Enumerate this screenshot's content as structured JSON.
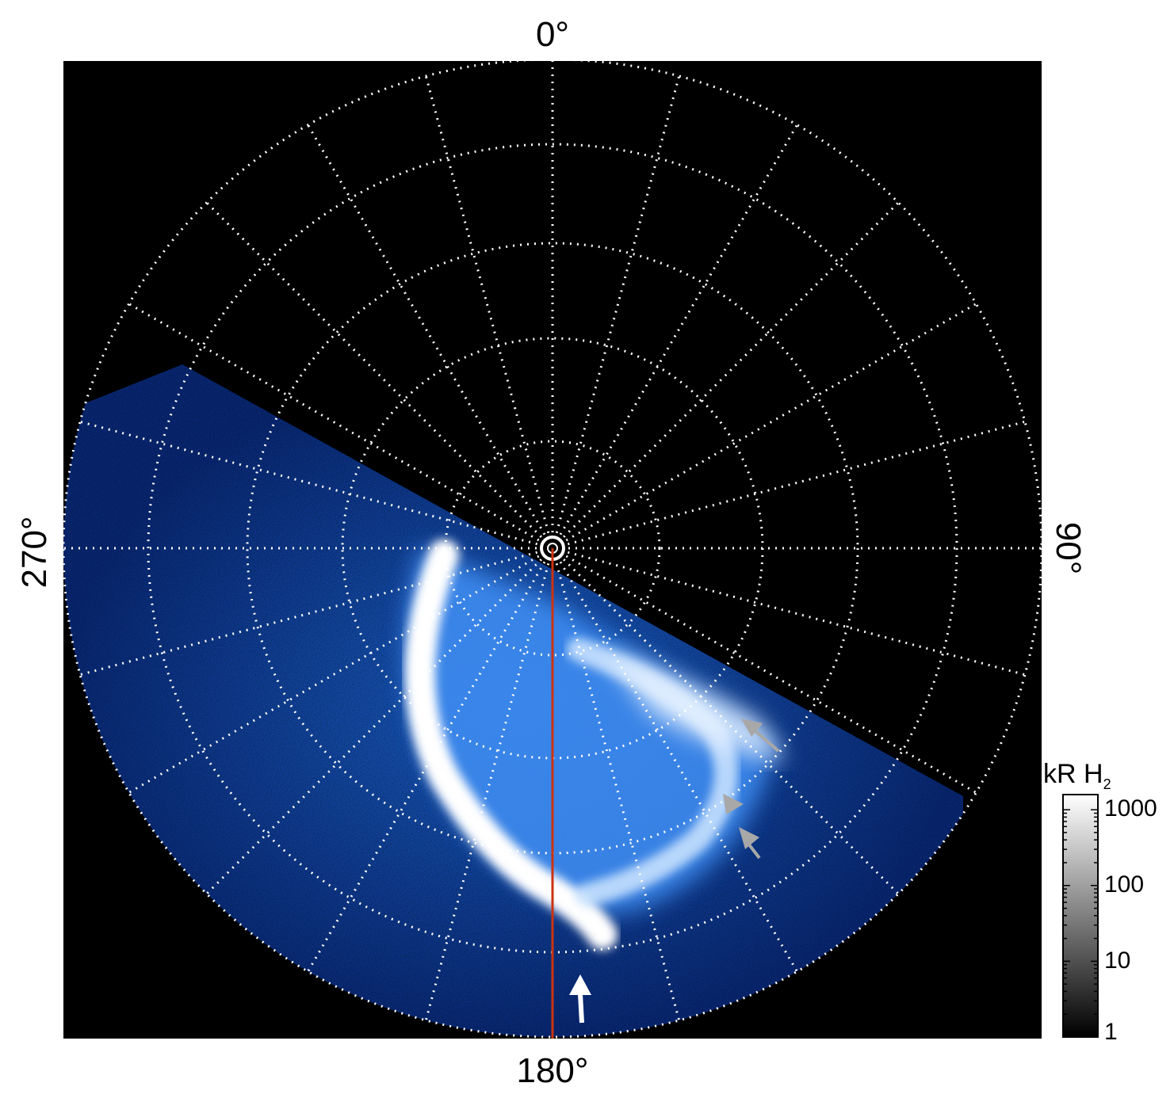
{
  "projection": "polar",
  "hemisphere_view": "pole-centered",
  "directions": {
    "top": "0°",
    "right": "90°",
    "bottom": "180°",
    "left": "270°"
  },
  "colorbar": {
    "title_main": "kR H",
    "title_sub": "2",
    "scale": "log",
    "ticks": [
      "1000",
      "100",
      "10",
      "1"
    ],
    "colors": [
      "#000000",
      "#ffffff"
    ]
  },
  "colors": {
    "background": "#000000",
    "grid": "#ffffff",
    "aurora_dim": "#0a3aa8",
    "aurora_mid": "#2a7cf0",
    "aurora_bright": "#ffffff",
    "meridian_line": "#cc3311",
    "arrow_gray": "#a8a8a8",
    "arrow_white": "#ffffff"
  },
  "grid": {
    "meridian_step_deg": 15,
    "style": "dotted"
  }
}
